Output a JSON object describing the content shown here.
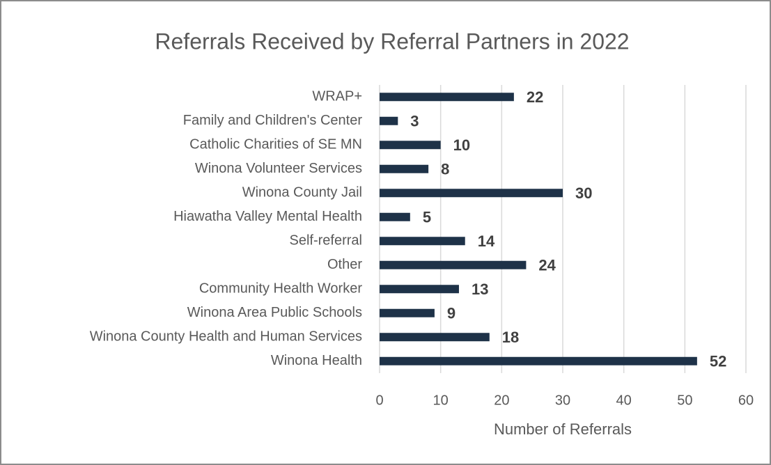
{
  "chart_data": {
    "type": "bar",
    "orientation": "horizontal",
    "title": "Referrals Received by Referral Partners in 2022",
    "x_label": "Number of Referrals",
    "categories": [
      "WRAP+",
      "Family and Children's Center",
      "Catholic Charities of SE MN",
      "Winona Volunteer Services",
      "Winona County Jail",
      "Hiawatha Valley Mental Health",
      "Self-referral",
      "Other",
      "Community Health Worker",
      "Winona Area Public Schools",
      "Winona County Health and Human Services",
      "Winona Health"
    ],
    "values": [
      22,
      3,
      10,
      8,
      30,
      5,
      14,
      24,
      13,
      9,
      18,
      52
    ],
    "color": "#1e3248",
    "xlim": [
      0,
      60
    ],
    "xticks": [
      0,
      10,
      20,
      30,
      40,
      50,
      60
    ],
    "grid": true
  }
}
